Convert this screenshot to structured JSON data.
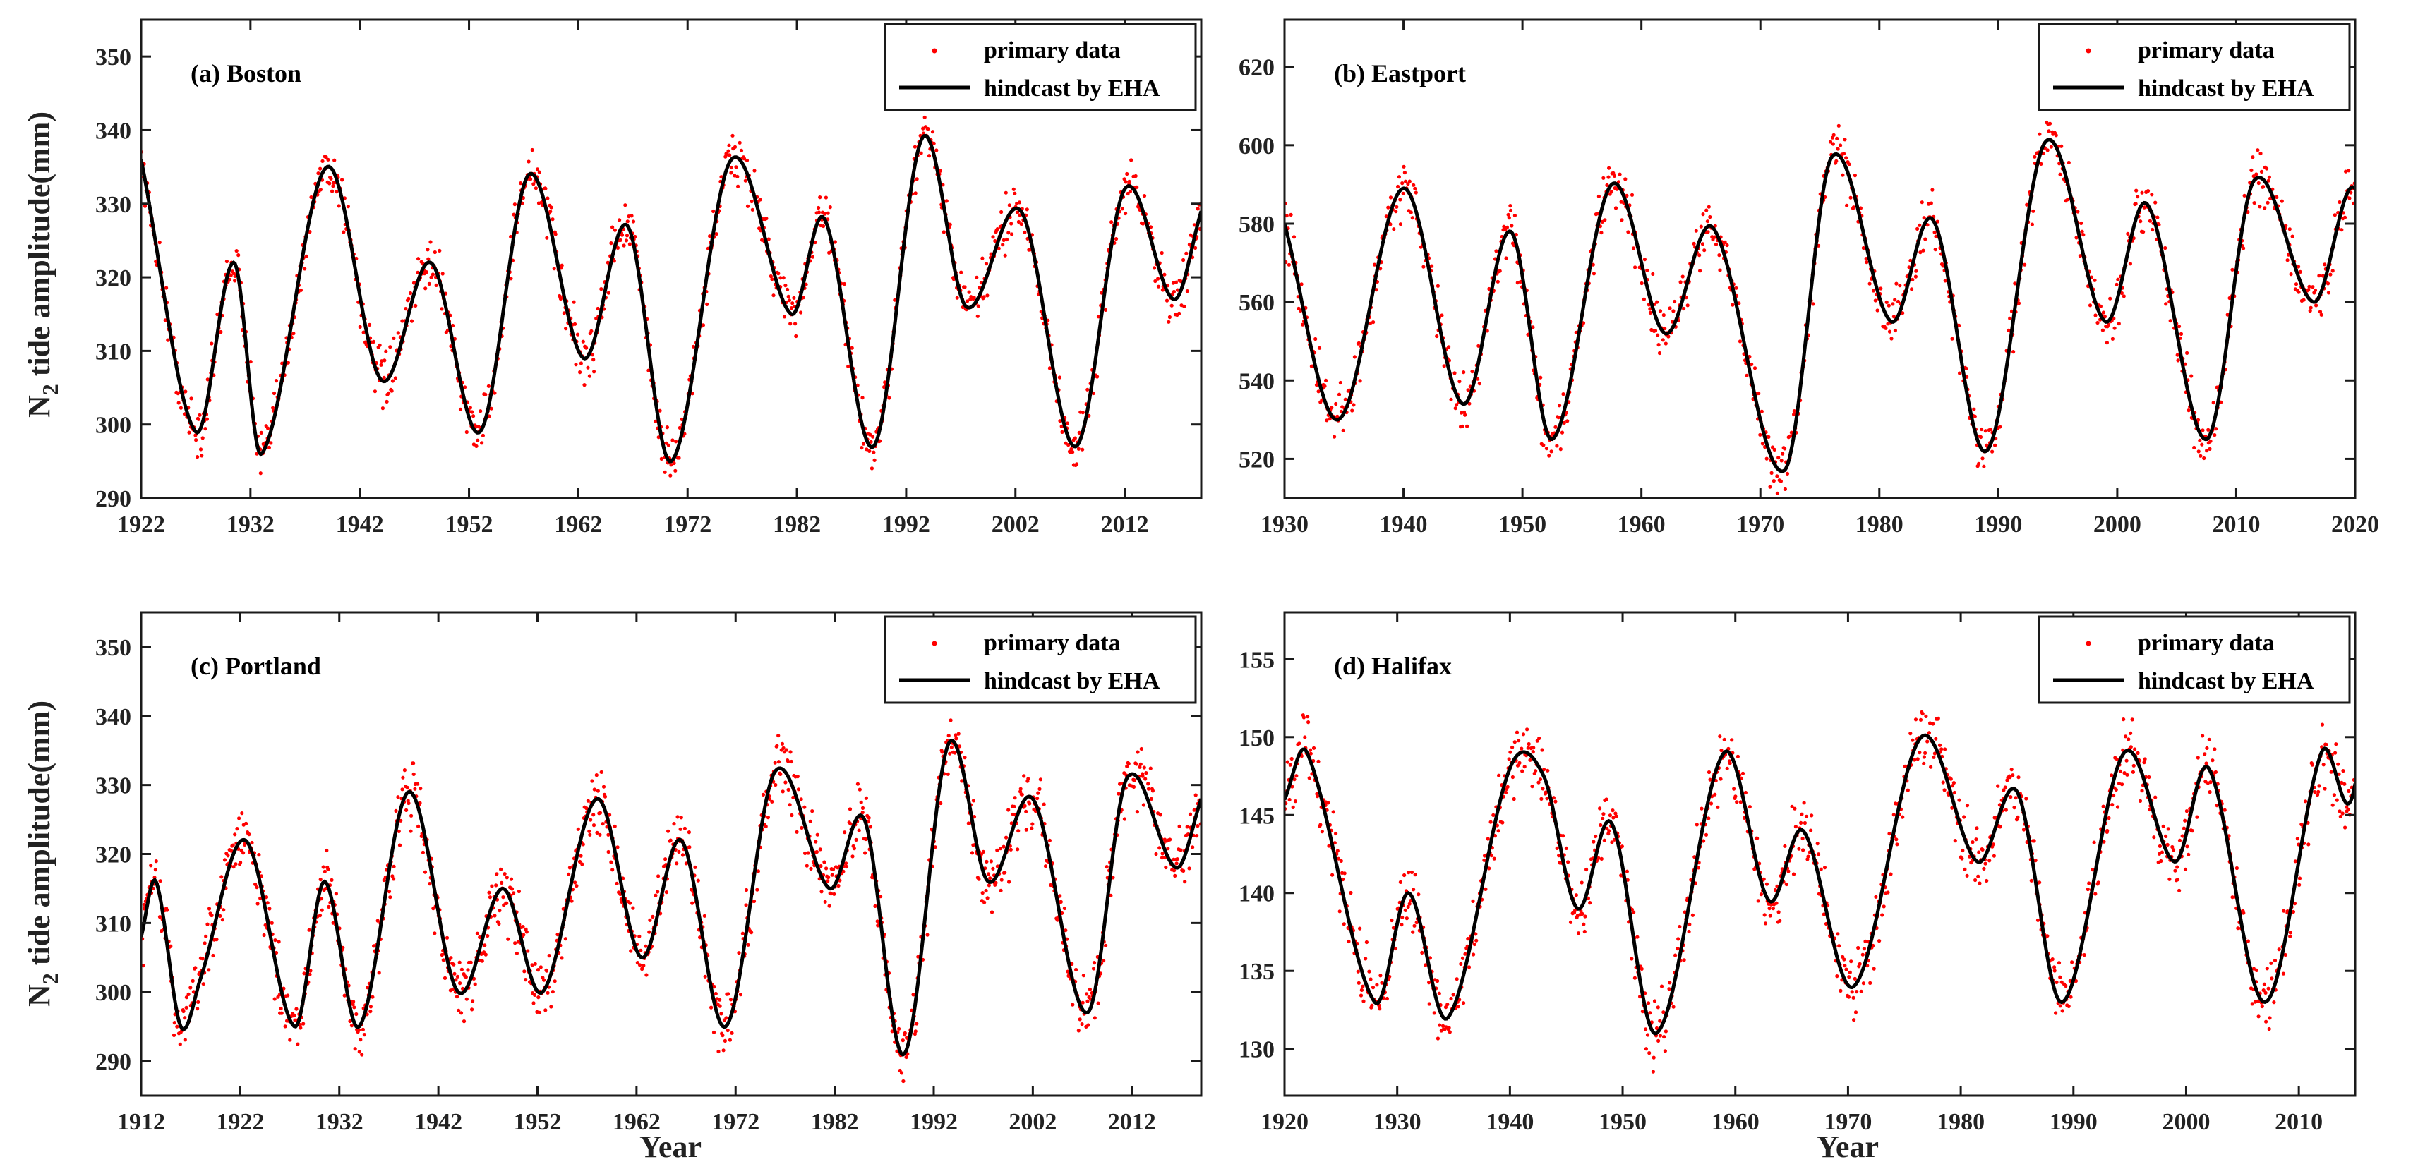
{
  "figure": {
    "ylabel_main": "N",
    "ylabel_sub": "2",
    "ylabel_rest": " tide amplitude(mm)",
    "xlabel": "Year"
  },
  "colors": {
    "primary": "#ff0000",
    "hindcast": "#000000",
    "frame": "#1a1a1a"
  },
  "chart_data": [
    {
      "type": "scatter+line",
      "title": "(a) Boston",
      "xlim": [
        1922,
        2019
      ],
      "xticks": [
        1922,
        1932,
        1942,
        1952,
        1962,
        1972,
        1982,
        1992,
        2002,
        2012
      ],
      "ylim": [
        290,
        355
      ],
      "yticks": [
        290,
        300,
        310,
        320,
        330,
        340,
        350
      ],
      "legend": [
        "primary data",
        "hindcast by EHA"
      ],
      "legend_position": "top-right",
      "hindcast_keypoints": [
        [
          1922,
          336
        ],
        [
          1927,
          299
        ],
        [
          1930.5,
          322
        ],
        [
          1933,
          296
        ],
        [
          1939,
          335
        ],
        [
          1944,
          306
        ],
        [
          1948.5,
          322
        ],
        [
          1953,
          299
        ],
        [
          1957.5,
          334
        ],
        [
          1962.5,
          309
        ],
        [
          1966.5,
          327
        ],
        [
          1970.5,
          295
        ],
        [
          1976,
          336
        ],
        [
          1981.5,
          315
        ],
        [
          1984.5,
          328
        ],
        [
          1989,
          297
        ],
        [
          1993.5,
          339
        ],
        [
          1997.5,
          316
        ],
        [
          2002.5,
          329
        ],
        [
          2007.5,
          297
        ],
        [
          2012,
          332
        ],
        [
          2016.5,
          317
        ],
        [
          2019,
          329
        ]
      ],
      "scatter_spread": 3
    },
    {
      "type": "scatter+line",
      "title": "(b) Eastport",
      "xlim": [
        1930,
        2020
      ],
      "xticks": [
        1930,
        1940,
        1950,
        1960,
        1970,
        1980,
        1990,
        2000,
        2010,
        2020
      ],
      "ylim": [
        510,
        632
      ],
      "yticks": [
        520,
        540,
        560,
        580,
        600,
        620
      ],
      "legend": [
        "primary data",
        "hindcast by EHA"
      ],
      "legend_position": "top-right",
      "hindcast_keypoints": [
        [
          1930,
          580
        ],
        [
          1934.5,
          530
        ],
        [
          1940,
          589
        ],
        [
          1945,
          534
        ],
        [
          1949,
          578
        ],
        [
          1952.5,
          525
        ],
        [
          1957.5,
          590
        ],
        [
          1962,
          552
        ],
        [
          1966,
          579
        ],
        [
          1972,
          517
        ],
        [
          1976,
          597
        ],
        [
          1981,
          555
        ],
        [
          1984.5,
          581
        ],
        [
          1989,
          522
        ],
        [
          1994,
          601
        ],
        [
          1999,
          555
        ],
        [
          2002.5,
          585
        ],
        [
          2007.5,
          525
        ],
        [
          2011.5,
          591
        ],
        [
          2016.5,
          560
        ],
        [
          2019,
          585
        ]
      ],
      "scatter_spread": 6
    },
    {
      "type": "scatter+line",
      "title": "(c) Portland",
      "xlim": [
        1912,
        2019
      ],
      "xticks": [
        1912,
        1922,
        1932,
        1942,
        1952,
        1962,
        1972,
        1982,
        1992,
        2002,
        2012
      ],
      "ylim": [
        285,
        355
      ],
      "yticks": [
        290,
        300,
        310,
        320,
        330,
        340,
        350
      ],
      "legend": [
        "primary data",
        "hindcast by EHA"
      ],
      "legend_position": "top-right",
      "hindcast_keypoints": [
        [
          1912,
          308
        ],
        [
          1913.5,
          316
        ],
        [
          1916,
          295
        ],
        [
          1918,
          302
        ],
        [
          1922.5,
          322
        ],
        [
          1927.5,
          295
        ],
        [
          1930.5,
          316
        ],
        [
          1934,
          295
        ],
        [
          1939,
          329
        ],
        [
          1944,
          300
        ],
        [
          1948.5,
          315
        ],
        [
          1952.5,
          300
        ],
        [
          1958,
          328
        ],
        [
          1962.5,
          305
        ],
        [
          1966.5,
          322
        ],
        [
          1971,
          295
        ],
        [
          1976,
          332
        ],
        [
          1981.5,
          315
        ],
        [
          1985,
          325
        ],
        [
          1989,
          291
        ],
        [
          1993.5,
          336
        ],
        [
          1997.5,
          316
        ],
        [
          2002,
          328
        ],
        [
          2007.5,
          297
        ],
        [
          2011.5,
          331
        ],
        [
          2016.5,
          318
        ],
        [
          2019,
          328
        ]
      ],
      "scatter_spread": 4
    },
    {
      "type": "scatter+line",
      "title": "(d) Halifax",
      "xlim": [
        1920,
        2015
      ],
      "xticks": [
        1920,
        1930,
        1940,
        1950,
        1960,
        1970,
        1980,
        1990,
        2000,
        2010
      ],
      "ylim": [
        127,
        158
      ],
      "yticks": [
        130,
        135,
        140,
        145,
        150,
        155
      ],
      "legend": [
        "primary data",
        "hindcast by EHA"
      ],
      "legend_position": "top-right",
      "hindcast_keypoints": [
        [
          1920,
          146
        ],
        [
          1922,
          149
        ],
        [
          1928,
          133
        ],
        [
          1931,
          140
        ],
        [
          1934.5,
          132
        ],
        [
          1940,
          148
        ],
        [
          1943,
          147.5
        ],
        [
          1946,
          139
        ],
        [
          1949,
          144.5
        ],
        [
          1953,
          131
        ],
        [
          1959,
          149
        ],
        [
          1963,
          139.5
        ],
        [
          1966,
          144
        ],
        [
          1970.5,
          134
        ],
        [
          1976.5,
          150
        ],
        [
          1981.5,
          142
        ],
        [
          1985,
          146.5
        ],
        [
          1989,
          133
        ],
        [
          1994.5,
          149
        ],
        [
          1999,
          142
        ],
        [
          2002,
          148
        ],
        [
          2007,
          133
        ],
        [
          2012,
          149
        ],
        [
          2014,
          146
        ]
      ],
      "scatter_spread": 1.8
    }
  ]
}
